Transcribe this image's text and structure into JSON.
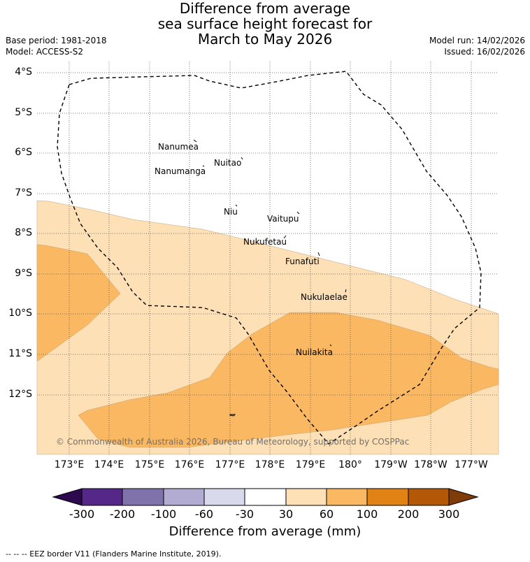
{
  "title": {
    "line1": "Difference from average",
    "line2": "sea surface height forecast for",
    "line3": "March to May 2026"
  },
  "meta": {
    "base_period": "Base period: 1981-2018",
    "model": "Model: ACCESS-S2",
    "model_run": "Model run: 14/02/2026",
    "issued": "Issued: 16/02/2026"
  },
  "map": {
    "lat_labels": [
      "4°S",
      "5°S",
      "6°S",
      "7°S",
      "8°S",
      "9°S",
      "10°S",
      "11°S",
      "12°S"
    ],
    "lon_labels": [
      "173°E",
      "174°E",
      "175°E",
      "176°E",
      "177°E",
      "178°E",
      "179°E",
      "180°",
      "179°W",
      "178°W",
      "177°W"
    ],
    "places": [
      "Nanumea",
      "Nuitao",
      "Nanumanga",
      "Niu",
      "Vaitupu",
      "Nukufetau",
      "Funafuti",
      "Nukulaelae",
      "Nuilakita"
    ],
    "copyright": "© Commonwealth of Australia 2026, Bureau of Meteorology, supported by COSPPac"
  },
  "colorbar": {
    "title": "Difference from average (mm)",
    "tick_labels": [
      "-300",
      "-200",
      "-100",
      "-60",
      "-30",
      "30",
      "60",
      "100",
      "200",
      "300"
    ],
    "colors": {
      "lt_m300": "#2d0a4e",
      "m300_m200": "#542788",
      "m200_m100": "#8073ac",
      "m100_m60": "#b2abd2",
      "m60_m30": "#d8daeb",
      "m30_30": "#ffffff",
      "c30_60": "#fde0b6",
      "c60_100": "#fbb862",
      "c100_200": "#e08214",
      "c200_300": "#b35806",
      "gt_300": "#7f3b08"
    }
  },
  "footer": {
    "legend": "--  --  -- EEZ border V11 (Flanders Marine Institute, 2019)."
  }
}
